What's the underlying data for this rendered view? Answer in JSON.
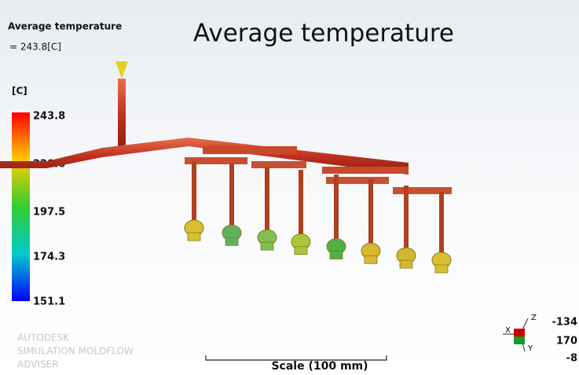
{
  "header": {
    "label": "Average temperature",
    "value": "= 243.8[C]"
  },
  "title": "Average temperature",
  "legend": {
    "unit": "[C]",
    "ticks": [
      "243.8",
      "220.6",
      "197.5",
      "174.3",
      "151.1"
    ]
  },
  "watermark": [
    "AUTODESK",
    "SIMULATION MOLDFLOW",
    "ADVISER"
  ],
  "scale": "Scale (100 mm)",
  "triad": [
    "X",
    "Y",
    "Z"
  ],
  "coords": [
    "-134",
    "170",
    "-8"
  ]
}
